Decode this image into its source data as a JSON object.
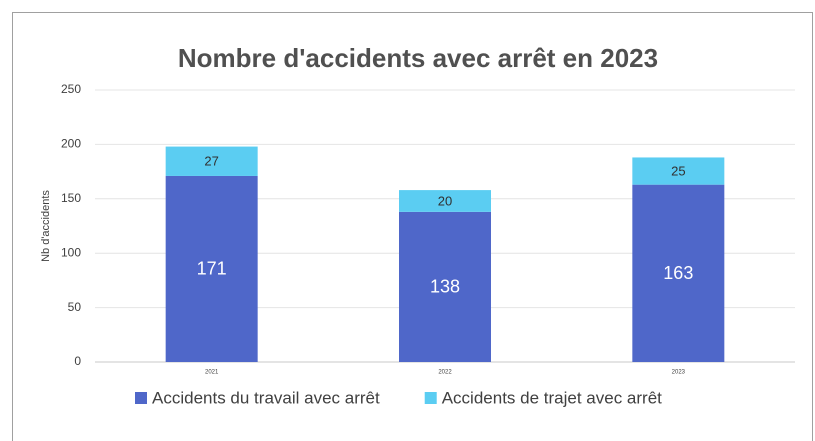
{
  "chart_data": {
    "type": "stacked_bar",
    "title": "Nombre d'accidents avec arrêt en 2023",
    "y_label": "Nb d'accidents",
    "categories": [
      "2021",
      "2022",
      "2023"
    ],
    "series": [
      {
        "name": "Accidents du travail avec arrêt",
        "color": "#4f67c9",
        "values": [
          171,
          138,
          163
        ]
      },
      {
        "name": "Accidents de trajet avec arrêt",
        "color": "#5bcdf2",
        "values": [
          27,
          20,
          25
        ]
      }
    ],
    "ylim": [
      0,
      250
    ],
    "yticks": [
      0,
      50,
      100,
      150,
      200,
      250
    ],
    "grid": true,
    "legend": "bottom"
  }
}
